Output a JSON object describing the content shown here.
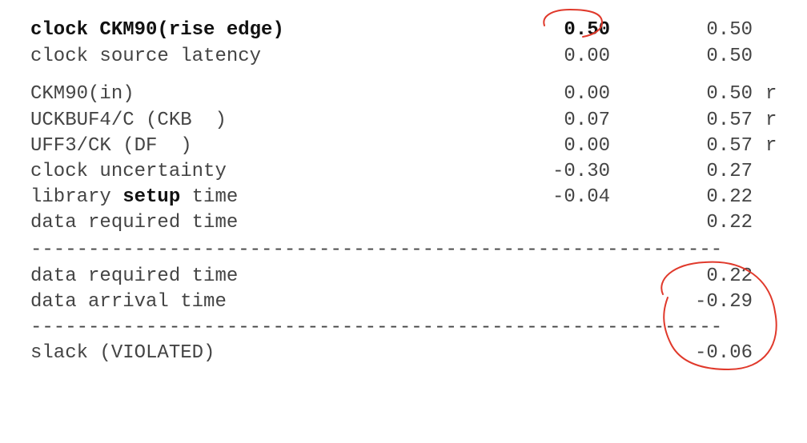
{
  "rows": [
    {
      "label": "clock CKM90(rise edge)",
      "incr": "0.50",
      "path": "0.50",
      "flag": ""
    },
    {
      "label": "clock source latency",
      "incr": "0.00",
      "path": "0.50",
      "flag": ""
    },
    {
      "label": "CKM90(in)",
      "incr": "0.00",
      "path": "0.50",
      "flag": "r"
    },
    {
      "label": "UCKBUF4/C (CKB  )",
      "incr": "0.07",
      "path": "0.57",
      "flag": "r"
    },
    {
      "label": "UFF3/CK (DF  )",
      "incr": "0.00",
      "path": "0.57",
      "flag": "r"
    },
    {
      "label": "clock uncertainty",
      "incr": "-0.30",
      "path": "0.27",
      "flag": ""
    },
    {
      "label_pre": "library ",
      "label_bold": "setup",
      "label_post": " time",
      "incr": "-0.04",
      "path": "0.22",
      "flag": ""
    },
    {
      "label": "data required time",
      "incr": "",
      "path": "0.22",
      "flag": ""
    }
  ],
  "separator": "------------------------------------------------------------",
  "summary": [
    {
      "label": "data required time",
      "path": "0.22"
    },
    {
      "label": "data arrival time",
      "path": "-0.29"
    }
  ],
  "slack": {
    "label": "slack (VIOLATED)",
    "path": "-0.06"
  },
  "colors": {
    "text": "#444444",
    "bold": "#111111",
    "annotation": "#e0392b"
  }
}
